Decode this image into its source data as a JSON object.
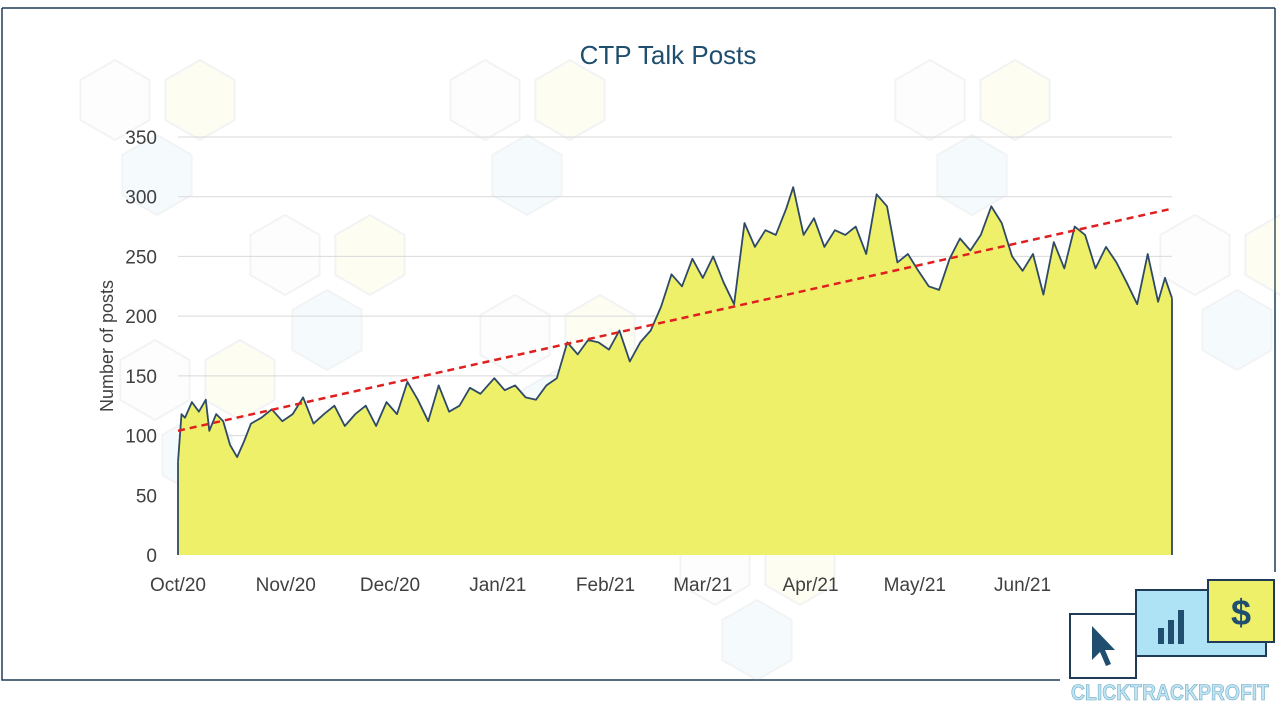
{
  "chart_data": {
    "type": "area",
    "title": "CTP Talk Posts",
    "ylabel": "Number of posts",
    "xlabel": "",
    "ylim": [
      0,
      350
    ],
    "yticks": [
      0,
      50,
      100,
      150,
      200,
      250,
      300,
      350
    ],
    "xlim": [
      "2020-10-01",
      "2021-06-30"
    ],
    "xtick_labels": [
      {
        "label": "Oct/20",
        "date": "2020-10-01"
      },
      {
        "label": "Nov/20",
        "date": "2020-11-01"
      },
      {
        "label": "Dec/20",
        "date": "2020-12-01"
      },
      {
        "label": "Jan/21",
        "date": "2021-01-01"
      },
      {
        "label": "Feb/21",
        "date": "2021-02-01"
      },
      {
        "label": "Mar/21",
        "date": "2021-03-01"
      },
      {
        "label": "Apr/21",
        "date": "2021-04-01"
      },
      {
        "label": "May/21",
        "date": "2021-05-01"
      },
      {
        "label": "Jun/21",
        "date": "2021-06-01"
      }
    ],
    "grid": true,
    "legend": "none",
    "colors": {
      "fill": "#eef06a",
      "line": "#2e4a66",
      "trend": "#e02020",
      "title": "#1f4e6e",
      "axis_text": "#404040",
      "grid": "#d9d9d9"
    },
    "series": [
      {
        "style": "area",
        "points": [
          [
            "2020-10-01",
            78
          ],
          [
            "2020-10-02",
            118
          ],
          [
            "2020-10-03",
            115
          ],
          [
            "2020-10-05",
            128
          ],
          [
            "2020-10-07",
            120
          ],
          [
            "2020-10-09",
            130
          ],
          [
            "2020-10-10",
            104
          ],
          [
            "2020-10-12",
            118
          ],
          [
            "2020-10-14",
            112
          ],
          [
            "2020-10-16",
            92
          ],
          [
            "2020-10-18",
            82
          ],
          [
            "2020-10-20",
            95
          ],
          [
            "2020-10-22",
            110
          ],
          [
            "2020-10-25",
            115
          ],
          [
            "2020-10-28",
            122
          ],
          [
            "2020-10-31",
            112
          ],
          [
            "2020-11-03",
            118
          ],
          [
            "2020-11-06",
            132
          ],
          [
            "2020-11-09",
            110
          ],
          [
            "2020-11-12",
            118
          ],
          [
            "2020-11-15",
            125
          ],
          [
            "2020-11-18",
            108
          ],
          [
            "2020-11-21",
            118
          ],
          [
            "2020-11-24",
            125
          ],
          [
            "2020-11-27",
            108
          ],
          [
            "2020-11-30",
            128
          ],
          [
            "2020-12-03",
            118
          ],
          [
            "2020-12-06",
            145
          ],
          [
            "2020-12-09",
            130
          ],
          [
            "2020-12-12",
            112
          ],
          [
            "2020-12-15",
            142
          ],
          [
            "2020-12-18",
            120
          ],
          [
            "2020-12-21",
            125
          ],
          [
            "2020-12-24",
            140
          ],
          [
            "2020-12-27",
            135
          ],
          [
            "2020-12-31",
            148
          ],
          [
            "2021-01-03",
            138
          ],
          [
            "2021-01-06",
            142
          ],
          [
            "2021-01-09",
            132
          ],
          [
            "2021-01-12",
            130
          ],
          [
            "2021-01-15",
            142
          ],
          [
            "2021-01-18",
            148
          ],
          [
            "2021-01-21",
            178
          ],
          [
            "2021-01-24",
            168
          ],
          [
            "2021-01-27",
            180
          ],
          [
            "2021-01-30",
            178
          ],
          [
            "2021-02-02",
            172
          ],
          [
            "2021-02-05",
            188
          ],
          [
            "2021-02-08",
            162
          ],
          [
            "2021-02-11",
            178
          ],
          [
            "2021-02-14",
            188
          ],
          [
            "2021-02-17",
            208
          ],
          [
            "2021-02-20",
            235
          ],
          [
            "2021-02-23",
            225
          ],
          [
            "2021-02-26",
            248
          ],
          [
            "2021-03-01",
            232
          ],
          [
            "2021-03-04",
            250
          ],
          [
            "2021-03-07",
            228
          ],
          [
            "2021-03-10",
            210
          ],
          [
            "2021-03-13",
            278
          ],
          [
            "2021-03-16",
            258
          ],
          [
            "2021-03-19",
            272
          ],
          [
            "2021-03-22",
            268
          ],
          [
            "2021-03-25",
            290
          ],
          [
            "2021-03-27",
            308
          ],
          [
            "2021-03-30",
            268
          ],
          [
            "2021-04-02",
            282
          ],
          [
            "2021-04-05",
            258
          ],
          [
            "2021-04-08",
            272
          ],
          [
            "2021-04-11",
            268
          ],
          [
            "2021-04-14",
            275
          ],
          [
            "2021-04-17",
            252
          ],
          [
            "2021-04-20",
            302
          ],
          [
            "2021-04-23",
            292
          ],
          [
            "2021-04-26",
            245
          ],
          [
            "2021-04-29",
            252
          ],
          [
            "2021-05-02",
            238
          ],
          [
            "2021-05-05",
            225
          ],
          [
            "2021-05-08",
            222
          ],
          [
            "2021-05-11",
            248
          ],
          [
            "2021-05-14",
            265
          ],
          [
            "2021-05-17",
            255
          ],
          [
            "2021-05-20",
            268
          ],
          [
            "2021-05-23",
            292
          ],
          [
            "2021-05-26",
            278
          ],
          [
            "2021-05-29",
            250
          ],
          [
            "2021-06-01",
            238
          ],
          [
            "2021-06-04",
            252
          ],
          [
            "2021-06-07",
            218
          ],
          [
            "2021-06-10",
            262
          ],
          [
            "2021-06-13",
            240
          ],
          [
            "2021-06-16",
            275
          ],
          [
            "2021-06-19",
            268
          ],
          [
            "2021-06-22",
            240
          ],
          [
            "2021-06-25",
            258
          ],
          [
            "2021-06-28",
            245
          ],
          [
            "2021-07-01",
            228
          ],
          [
            "2021-07-04",
            210
          ],
          [
            "2021-07-07",
            252
          ],
          [
            "2021-07-10",
            212
          ],
          [
            "2021-07-12",
            232
          ],
          [
            "2021-07-14",
            215
          ]
        ]
      },
      {
        "style": "trendline",
        "points": [
          [
            "2020-10-01",
            104
          ],
          [
            "2021-07-14",
            290
          ]
        ]
      }
    ]
  },
  "brand": {
    "logo_text": "CLICKTRACKPROFIT",
    "dollar_glyph": "$"
  }
}
